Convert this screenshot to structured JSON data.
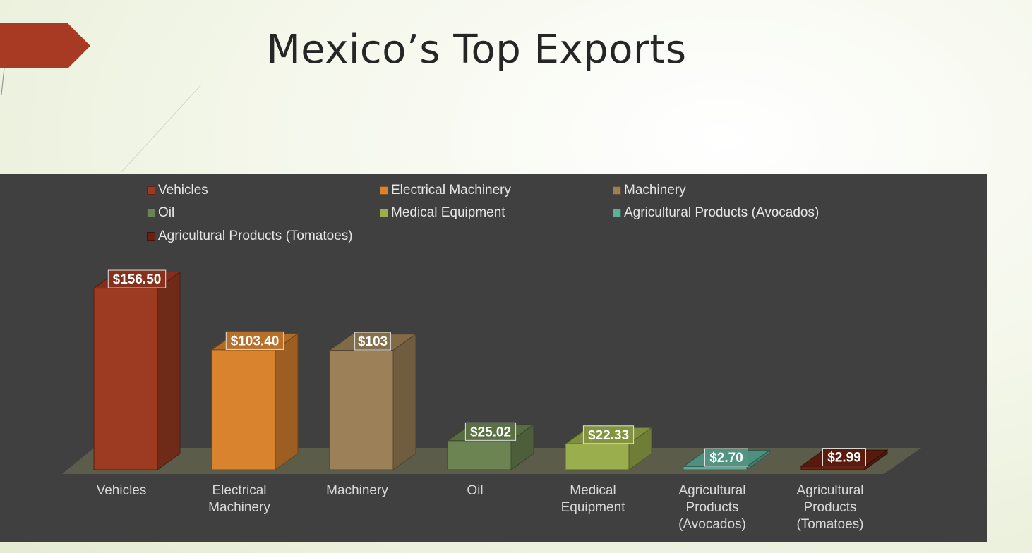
{
  "title": "Mexico’s Top Exports",
  "chart_data": {
    "type": "bar",
    "style": "3d-column",
    "categories": [
      [
        "Vehicles"
      ],
      [
        "Electrical",
        "Machinery"
      ],
      [
        "Machinery"
      ],
      [
        "Oil"
      ],
      [
        "Medical",
        "Equipment"
      ],
      [
        "Agricultural",
        "Products",
        "(Avocados)"
      ],
      [
        "Agricultural",
        "Products",
        "(Tomatoes)"
      ]
    ],
    "series": [
      {
        "name": "Vehicles",
        "value": 156.5,
        "label": "$156.50",
        "color": "#9c3a22"
      },
      {
        "name": "Electrical Machinery",
        "value": 103.4,
        "label": "$103.40",
        "color": "#d9832f"
      },
      {
        "name": "Machinery",
        "value": 103,
        "label": "$103",
        "color": "#9c8158"
      },
      {
        "name": "Oil",
        "value": 25.02,
        "label": "$25.02",
        "color": "#6b8451"
      },
      {
        "name": "Medical Equipment",
        "value": 22.33,
        "label": "$22.33",
        "color": "#9aae4d"
      },
      {
        "name": "Agricultural Products (Avocados)",
        "value": 2.7,
        "label": "$2.70",
        "color": "#5fae98"
      },
      {
        "name": "Agricultural Products (Tomatoes)",
        "value": 2.99,
        "label": "$2.99",
        "color": "#6b2012"
      }
    ],
    "legend_position": "top",
    "grid": false
  }
}
